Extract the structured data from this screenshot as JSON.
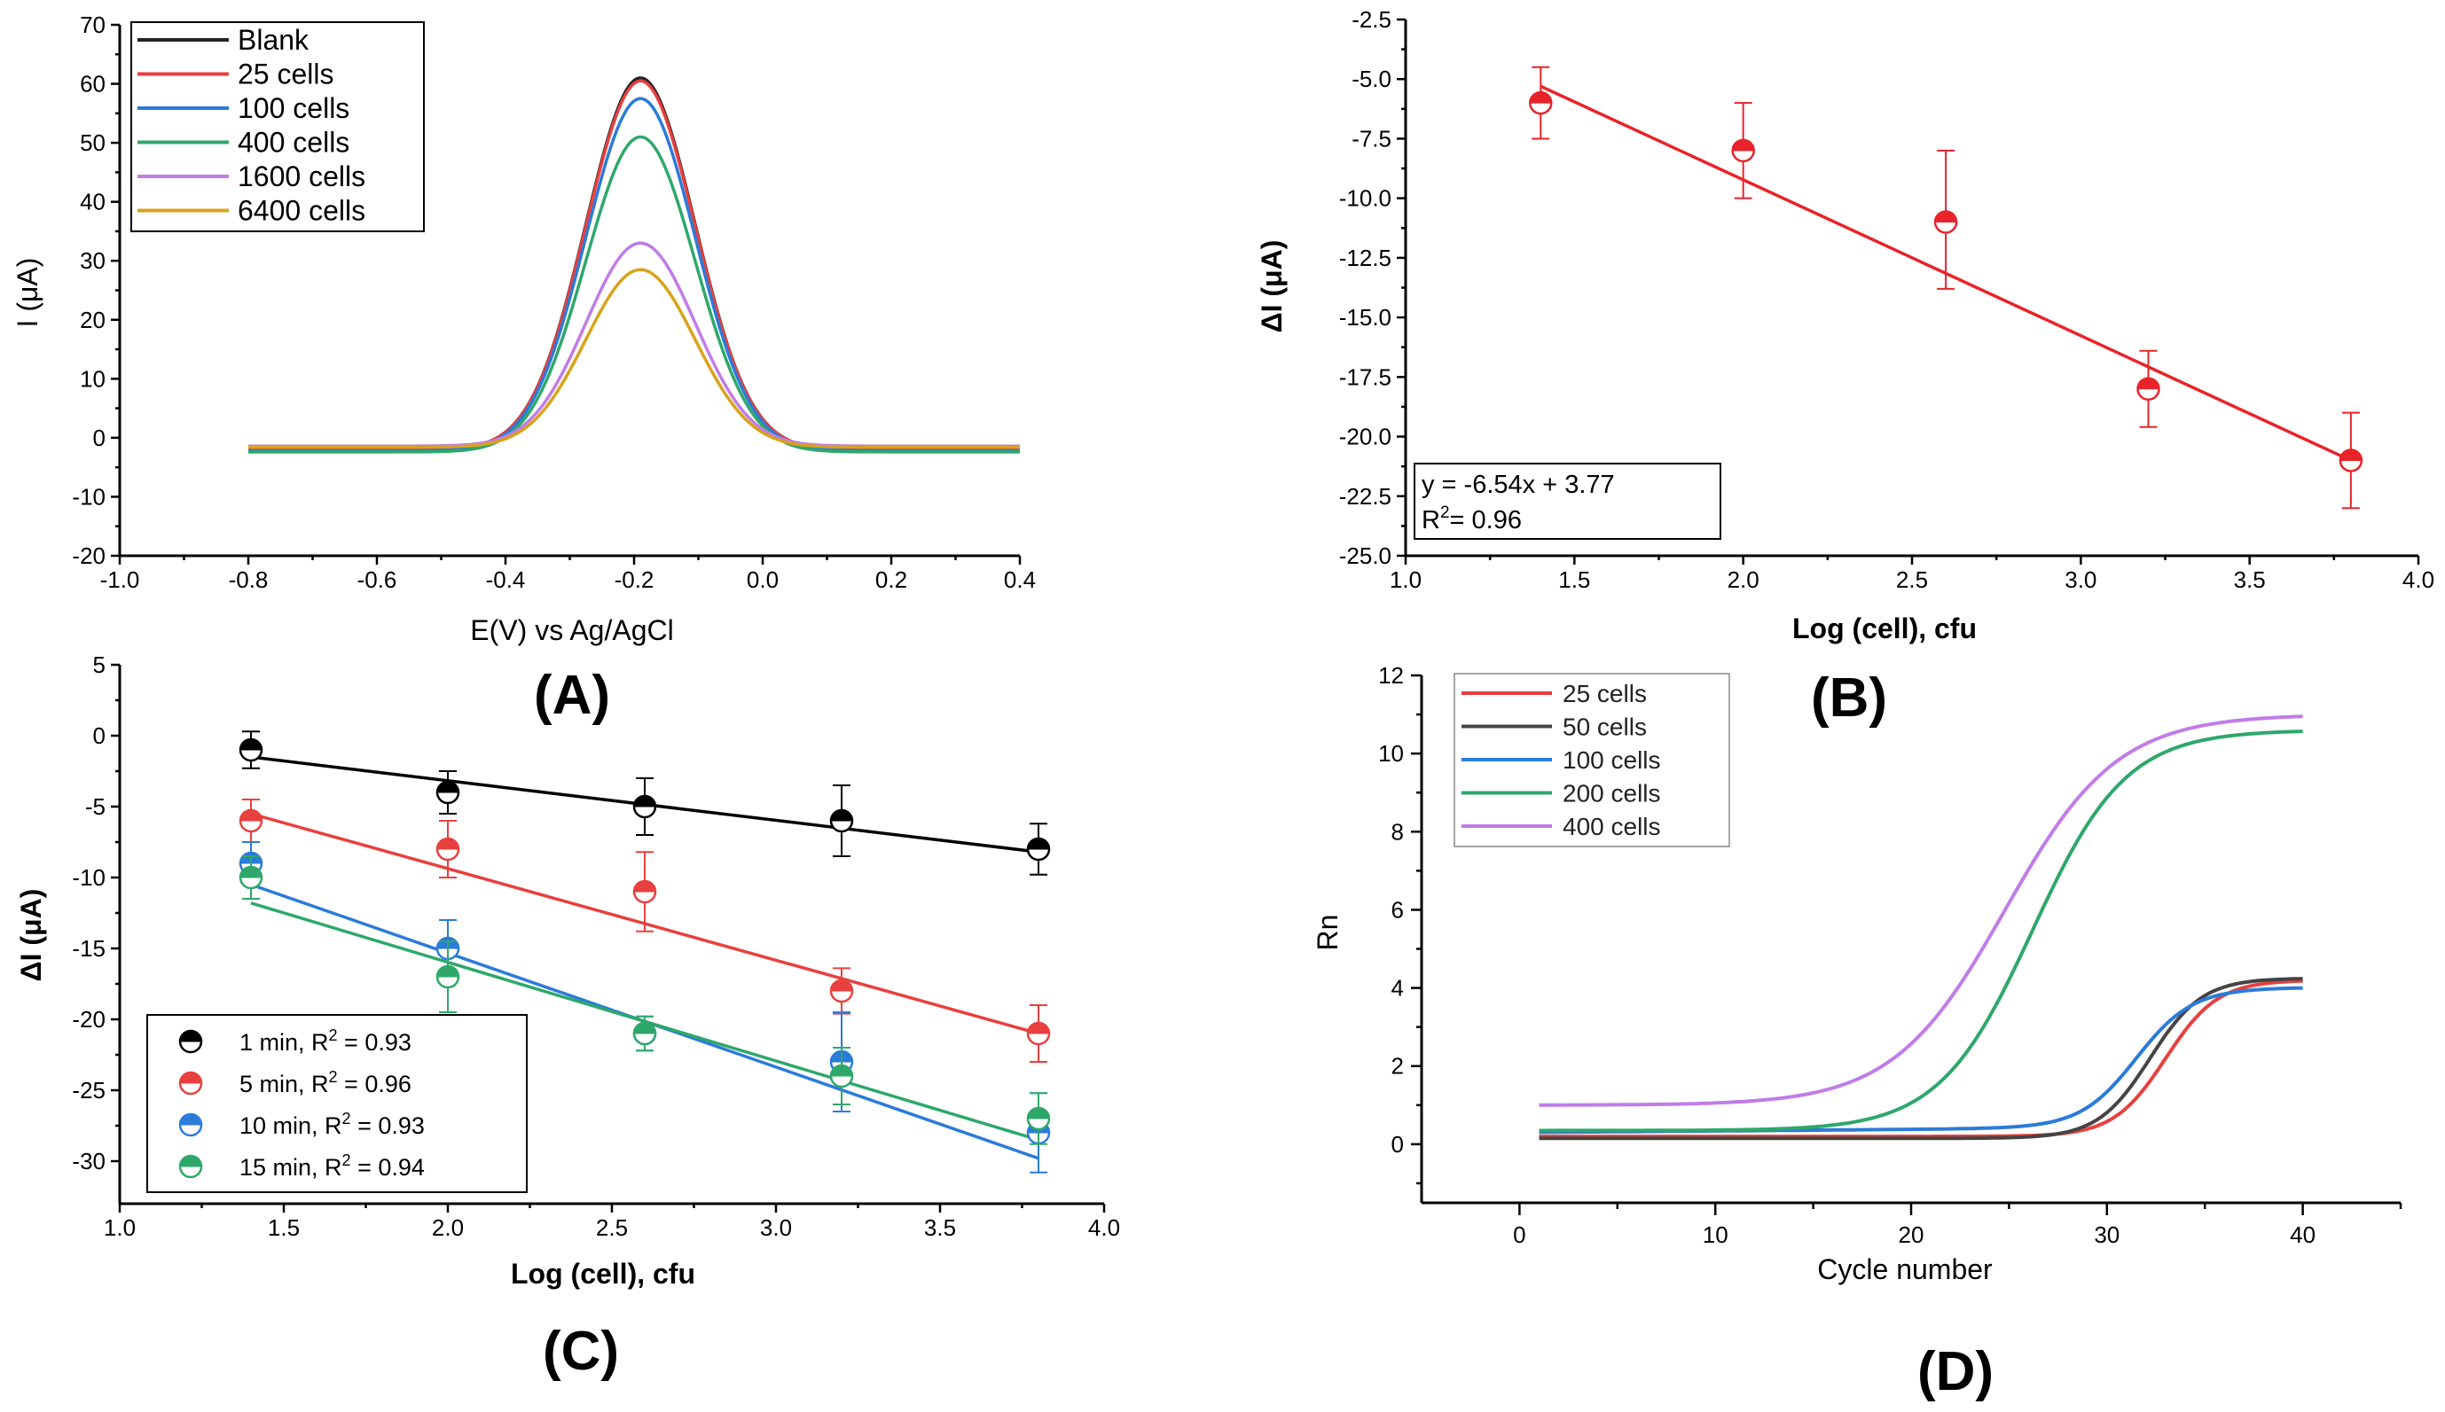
{
  "panel_labels": {
    "A": "(A)",
    "B": "(B)",
    "C": "(C)",
    "D": "(D)"
  },
  "chart_data": [
    {
      "id": "A",
      "type": "line",
      "title": "",
      "xlabel": "E(V) vs Ag/AgCl",
      "ylabel": "I (μA)",
      "xlim": [
        -1.0,
        0.4
      ],
      "ylim": [
        -20,
        70
      ],
      "xticks": [
        -1.0,
        -0.8,
        -0.6,
        -0.4,
        -0.2,
        0.0,
        0.2,
        0.4
      ],
      "xtick_labels": [
        "-1.0",
        "-0.8",
        "-0.6",
        "-0.4",
        "-0.2",
        "0.0",
        "0.2",
        "0.4"
      ],
      "yticks": [
        -20,
        -10,
        0,
        10,
        20,
        30,
        40,
        50,
        60,
        70
      ],
      "ytick_labels": [
        "-20",
        "-10",
        "0",
        "10",
        "20",
        "30",
        "40",
        "50",
        "60",
        "70"
      ],
      "legend_position": "top-left",
      "x_range": [
        -0.8,
        0.4
      ],
      "series": [
        {
          "name": "Blank",
          "color": "#222222",
          "peak": 61.0,
          "baseline": -2.0
        },
        {
          "name": "25 cells",
          "color": "#e8403e",
          "peak": 60.5,
          "baseline": -2.0
        },
        {
          "name": "100 cells",
          "color": "#2b7bd9",
          "peak": 57.5,
          "baseline": -2.2
        },
        {
          "name": "400 cells",
          "color": "#2ea86a",
          "peak": 51.0,
          "baseline": -2.4
        },
        {
          "name": "1600 cells",
          "color": "#c07ce8",
          "peak": 33.0,
          "baseline": -1.4
        },
        {
          "name": "6400 cells",
          "color": "#d9a21b",
          "peak": 28.5,
          "baseline": -1.6
        }
      ],
      "peak_center": -0.19,
      "peak_width": 0.085
    },
    {
      "id": "B",
      "type": "scatter",
      "title": "",
      "xlabel": "Log (cell), cfu",
      "ylabel": "ΔI (μA)",
      "xlim": [
        1.0,
        4.0
      ],
      "ylim": [
        -25.0,
        -2.5
      ],
      "xticks": [
        1.0,
        1.5,
        2.0,
        2.5,
        3.0,
        3.5,
        4.0
      ],
      "xtick_labels": [
        "1.0",
        "1.5",
        "2.0",
        "2.5",
        "3.0",
        "3.5",
        "4.0"
      ],
      "yticks": [
        -25.0,
        -22.5,
        -20.0,
        -17.5,
        -15.0,
        -12.5,
        -10.0,
        -7.5,
        -5.0,
        -2.5
      ],
      "ytick_labels": [
        "-25.0",
        "-22.5",
        "-20.0",
        "-17.5",
        "-15.0",
        "-12.5",
        "-10.0",
        "-7.5",
        "-5.0",
        "-2.5"
      ],
      "color": "#e8232a",
      "x": [
        1.4,
        2.0,
        2.6,
        3.2,
        3.8
      ],
      "y": [
        -6.0,
        -8.0,
        -11.0,
        -18.0,
        -21.0
      ],
      "err_up": [
        1.5,
        2.0,
        3.0,
        1.6,
        2.0
      ],
      "err_down": [
        1.5,
        2.0,
        2.8,
        1.6,
        2.0
      ],
      "fit_line": {
        "x": [
          1.4,
          3.8
        ],
        "y": [
          -5.3,
          -21.0
        ]
      },
      "equation": "y = -6.54x + 3.77",
      "r2_label": "R",
      "r2_sup": "2",
      "r2_value": "= 0.96",
      "legend_position": "bottom-left"
    },
    {
      "id": "C",
      "type": "scatter",
      "title": "",
      "xlabel": "Log (cell), cfu",
      "ylabel": "ΔI (μA)",
      "xlim": [
        1.0,
        4.0
      ],
      "ylim": [
        -33,
        5
      ],
      "xticks": [
        1.0,
        1.5,
        2.0,
        2.5,
        3.0,
        3.5,
        4.0
      ],
      "xtick_labels": [
        "1.0",
        "1.5",
        "2.0",
        "2.5",
        "3.0",
        "3.5",
        "4.0"
      ],
      "yticks": [
        -30,
        -25,
        -20,
        -15,
        -10,
        -5,
        0,
        5
      ],
      "ytick_labels": [
        "-30",
        "-25",
        "-20",
        "-15",
        "-10",
        "-5",
        "0",
        "5"
      ],
      "legend_position": "bottom-left",
      "x": [
        1.4,
        2.0,
        2.6,
        3.2,
        3.8
      ],
      "series": [
        {
          "name": "1 min, R",
          "sup": "2",
          "tail": " = 0.93",
          "color": "#000000",
          "y": [
            -1,
            -4,
            -5,
            -6,
            -8
          ],
          "err": [
            1.3,
            1.5,
            2.0,
            2.5,
            1.8
          ],
          "fit": [
            -1.5,
            -8.2
          ]
        },
        {
          "name": "5 min, R",
          "sup": "2",
          "tail": " = 0.96",
          "color": "#e8403e",
          "y": [
            -6,
            -8,
            -11,
            -18,
            -21
          ],
          "err": [
            1.5,
            2.0,
            2.8,
            1.6,
            2.0
          ],
          "fit": [
            -5.5,
            -21.0
          ]
        },
        {
          "name": "10 min, R",
          "sup": "2",
          "tail": " = 0.93",
          "color": "#2b7bd9",
          "y": [
            -9,
            -15,
            -21,
            -23,
            -28
          ],
          "err": [
            1.5,
            2.0,
            1.2,
            3.5,
            2.8
          ],
          "fit": [
            -10.5,
            -29.8
          ]
        },
        {
          "name": "15 min, R",
          "sup": "2",
          "tail": " = 0.94",
          "color": "#2ea86a",
          "y": [
            -10,
            -17,
            -21,
            -24,
            -27
          ],
          "err": [
            1.5,
            2.5,
            1.2,
            2.0,
            1.8
          ],
          "fit": [
            -11.8,
            -28.5
          ]
        }
      ]
    },
    {
      "id": "D",
      "type": "line",
      "title": "",
      "xlabel": "Cycle number",
      "ylabel": "Rn",
      "xlim": [
        -5,
        45
      ],
      "ylim": [
        -1.5,
        12
      ],
      "xticks": [
        0,
        10,
        20,
        30,
        40
      ],
      "xtick_labels": [
        "0",
        "10",
        "20",
        "30",
        "40"
      ],
      "yticks": [
        0,
        2,
        4,
        6,
        8,
        10,
        12
      ],
      "ytick_labels": [
        "0",
        "2",
        "4",
        "6",
        "8",
        "10",
        "12"
      ],
      "legend_position": "top-left",
      "series": [
        {
          "name": "25 cells",
          "color": "#e8403e",
          "base": 0.2,
          "top": 4.2,
          "mid": 33.0,
          "k": 0.75,
          "slope": 0.0
        },
        {
          "name": "50 cells",
          "color": "#444444",
          "base": 0.15,
          "top": 4.25,
          "mid": 32.2,
          "k": 0.75,
          "slope": 0.0
        },
        {
          "name": "100 cells",
          "color": "#2b7bd9",
          "base": 0.3,
          "top": 3.85,
          "mid": 31.5,
          "k": 0.7,
          "slope": 0.004
        },
        {
          "name": "200 cells",
          "color": "#2ea86a",
          "base": 0.35,
          "top": 10.6,
          "mid": 26.2,
          "k": 0.42,
          "slope": 0.0
        },
        {
          "name": "400 cells",
          "color": "#c07ce8",
          "base": 1.0,
          "top": 11.0,
          "mid": 24.8,
          "k": 0.35,
          "slope": 0.0
        }
      ]
    }
  ]
}
